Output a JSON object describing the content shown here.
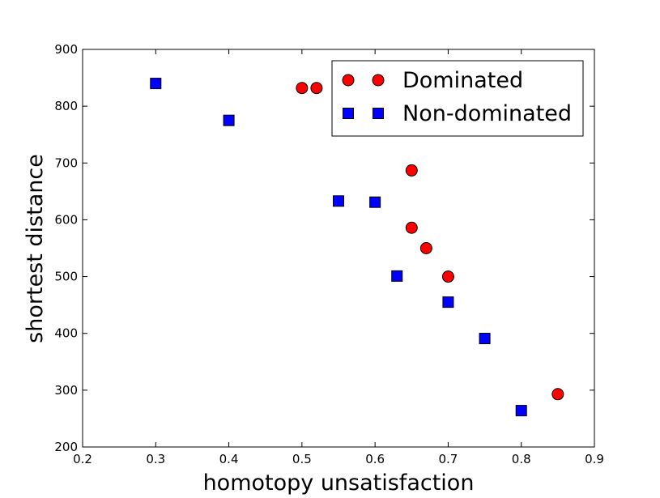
{
  "chart_data": {
    "type": "scatter",
    "title": "",
    "xlabel": "homotopy unsatisfaction",
    "ylabel": "shortest distance",
    "xlim": [
      0.2,
      0.9
    ],
    "ylim": [
      200,
      900
    ],
    "xticks": [
      "0.2",
      "0.3",
      "0.4",
      "0.5",
      "0.6",
      "0.7",
      "0.8",
      "0.9"
    ],
    "yticks": [
      "200",
      "300",
      "400",
      "500",
      "600",
      "700",
      "800",
      "900"
    ],
    "grid": false,
    "legend_position": "top-right",
    "series": [
      {
        "name": "Dominated",
        "marker": "circle",
        "color": "#ff0000",
        "x": [
          0.5,
          0.52,
          0.65,
          0.65,
          0.67,
          0.7,
          0.85
        ],
        "y": [
          832,
          832,
          687,
          586,
          550,
          500,
          293
        ]
      },
      {
        "name": "Non-dominated",
        "marker": "square",
        "color": "#0000ff",
        "x": [
          0.3,
          0.4,
          0.55,
          0.6,
          0.63,
          0.7,
          0.75,
          0.8
        ],
        "y": [
          840,
          775,
          633,
          631,
          501,
          455,
          391,
          264
        ]
      }
    ]
  }
}
